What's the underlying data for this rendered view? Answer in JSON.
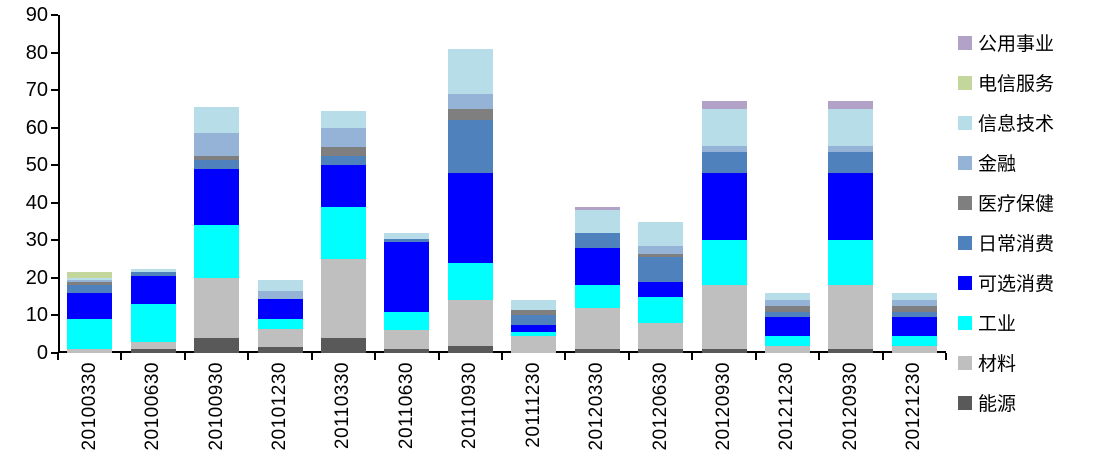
{
  "chart_data": {
    "type": "bar",
    "stacked": true,
    "title": "",
    "xlabel": "",
    "ylabel": "",
    "ylim": [
      0,
      90
    ],
    "yticks": [
      90,
      80,
      70,
      60,
      50,
      40,
      30,
      20,
      10,
      0
    ],
    "grid": false,
    "legend_position": "right",
    "legend_order": "top_of_stack_first",
    "categories": [
      "20100330",
      "20100630",
      "20100930",
      "20101230",
      "20110330",
      "20110630",
      "20110930",
      "20111230",
      "20120330",
      "20120630",
      "20120930",
      "20121230",
      "20120930",
      "20121230"
    ],
    "series": [
      {
        "id": "energy",
        "name": "能源",
        "color": "#595959",
        "values": [
          0,
          1,
          4,
          1.5,
          4,
          1,
          2,
          0,
          1,
          1,
          1,
          0,
          1,
          0
        ]
      },
      {
        "id": "materials",
        "name": "材料",
        "color": "#bfbfbf",
        "values": [
          1,
          2,
          16,
          5,
          21,
          5,
          12,
          4.5,
          11,
          7,
          17,
          2,
          17,
          2
        ]
      },
      {
        "id": "industrials",
        "name": "工业",
        "color": "#00ffff",
        "values": [
          8,
          10,
          14,
          2.5,
          14,
          5,
          10,
          1,
          6,
          7,
          12,
          2.5,
          12,
          2.5
        ]
      },
      {
        "id": "consumer-discretionary",
        "name": "可选消费",
        "color": "#0000ff",
        "values": [
          7,
          7.5,
          15,
          5.5,
          11,
          18.5,
          24,
          2,
          10,
          4,
          18,
          5,
          18,
          5
        ]
      },
      {
        "id": "consumer-staples",
        "name": "日常消费",
        "color": "#4f81bd",
        "values": [
          2,
          1,
          2.5,
          0,
          2.5,
          1,
          14,
          2.5,
          4,
          6.5,
          5.5,
          1.5,
          5.5,
          1.5
        ]
      },
      {
        "id": "healthcare",
        "name": "医疗保健",
        "color": "#7f7f7f",
        "values": [
          1,
          0,
          1,
          0,
          2.5,
          0,
          3,
          1.5,
          0,
          1,
          0,
          1.5,
          0,
          1.5
        ]
      },
      {
        "id": "financials",
        "name": "金融",
        "color": "#95b3d7",
        "values": [
          0.5,
          0,
          6,
          2,
          5,
          0,
          4,
          0,
          0,
          2,
          1.5,
          1.5,
          1.5,
          1.5
        ]
      },
      {
        "id": "info-tech",
        "name": "信息技术",
        "color": "#b7dee8",
        "values": [
          0.5,
          1,
          7,
          3,
          4.5,
          1.5,
          12,
          2.5,
          6,
          6.5,
          10,
          2,
          10,
          2
        ]
      },
      {
        "id": "telecom",
        "name": "电信服务",
        "color": "#c3d69b",
        "values": [
          1.5,
          0,
          0,
          0,
          0,
          0,
          0,
          0,
          0,
          0,
          0,
          0,
          0,
          0
        ]
      },
      {
        "id": "utilities",
        "name": "公用事业",
        "color": "#b3a2c7",
        "values": [
          0,
          0,
          0,
          0,
          0,
          0,
          0,
          0,
          1,
          0,
          2,
          0,
          2,
          0
        ]
      }
    ]
  }
}
